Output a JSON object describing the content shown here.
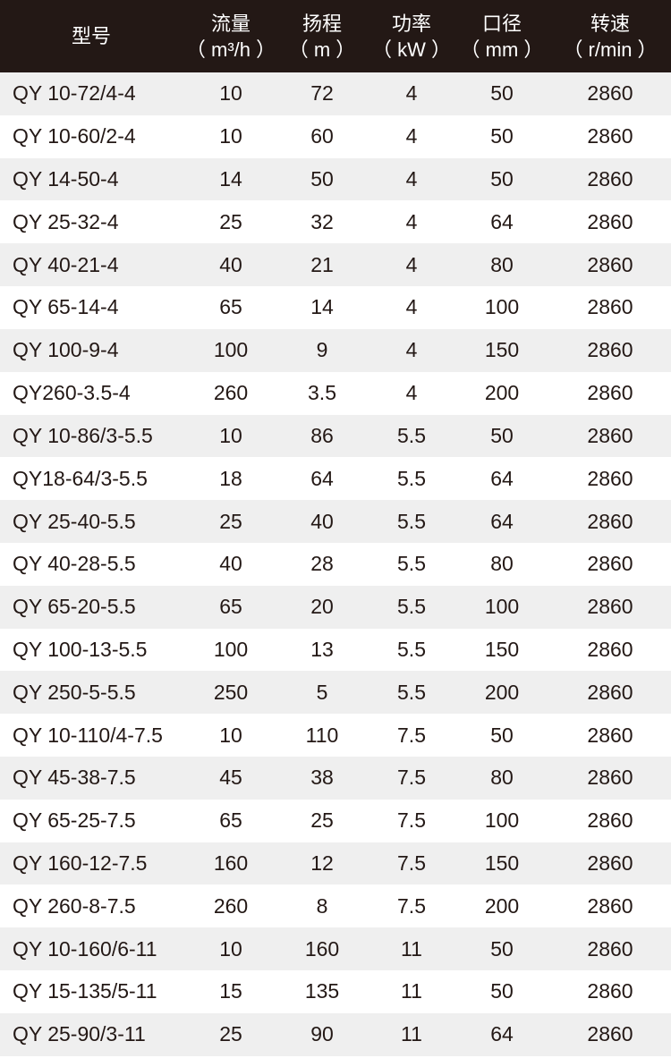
{
  "header": [
    {
      "title": "型号",
      "unit": ""
    },
    {
      "title": "流量",
      "unit": "（ m³/h ）"
    },
    {
      "title": "扬程",
      "unit": "（ m ）"
    },
    {
      "title": "功率",
      "unit": "（ kW ）"
    },
    {
      "title": "口径",
      "unit": "（ mm ）"
    },
    {
      "title": "转速",
      "unit": "（ r/min ）"
    }
  ],
  "colors": {
    "header_bg": "#231815",
    "stripe": "#efefef",
    "text": "#231815"
  },
  "rows": [
    [
      "QY 10-72/4-4",
      "10",
      "72",
      "4",
      "50",
      "2860"
    ],
    [
      "QY 10-60/2-4",
      "10",
      "60",
      "4",
      "50",
      "2860"
    ],
    [
      "QY 14-50-4",
      "14",
      "50",
      "4",
      "50",
      "2860"
    ],
    [
      "QY 25-32-4",
      "25",
      "32",
      "4",
      "64",
      "2860"
    ],
    [
      "QY 40-21-4",
      "40",
      "21",
      "4",
      "80",
      "2860"
    ],
    [
      "QY 65-14-4",
      "65",
      "14",
      "4",
      "100",
      "2860"
    ],
    [
      "QY 100-9-4",
      "100",
      "9",
      "4",
      "150",
      "2860"
    ],
    [
      "QY260-3.5-4",
      "260",
      "3.5",
      "4",
      "200",
      "2860"
    ],
    [
      "QY 10-86/3-5.5",
      "10",
      "86",
      "5.5",
      "50",
      "2860"
    ],
    [
      "QY18-64/3-5.5",
      "18",
      "64",
      "5.5",
      "64",
      "2860"
    ],
    [
      "QY 25-40-5.5",
      "25",
      "40",
      "5.5",
      "64",
      "2860"
    ],
    [
      "QY 40-28-5.5",
      "40",
      "28",
      "5.5",
      "80",
      "2860"
    ],
    [
      "QY 65-20-5.5",
      "65",
      "20",
      "5.5",
      "100",
      "2860"
    ],
    [
      "QY 100-13-5.5",
      "100",
      "13",
      "5.5",
      "150",
      "2860"
    ],
    [
      "QY 250-5-5.5",
      "250",
      "5",
      "5.5",
      "200",
      "2860"
    ],
    [
      "QY 10-110/4-7.5",
      "10",
      "110",
      "7.5",
      "50",
      "2860"
    ],
    [
      "QY 45-38-7.5",
      "45",
      "38",
      "7.5",
      "80",
      "2860"
    ],
    [
      "QY 65-25-7.5",
      "65",
      "25",
      "7.5",
      "100",
      "2860"
    ],
    [
      "QY 160-12-7.5",
      "160",
      "12",
      "7.5",
      "150",
      "2860"
    ],
    [
      "QY 260-8-7.5",
      "260",
      "8",
      "7.5",
      "200",
      "2860"
    ],
    [
      "QY 10-160/6-11",
      "10",
      "160",
      "11",
      "50",
      "2860"
    ],
    [
      "QY 15-135/5-11",
      "15",
      "135",
      "11",
      "50",
      "2860"
    ],
    [
      "QY 25-90/3-11",
      "25",
      "90",
      "11",
      "64",
      "2860"
    ]
  ]
}
